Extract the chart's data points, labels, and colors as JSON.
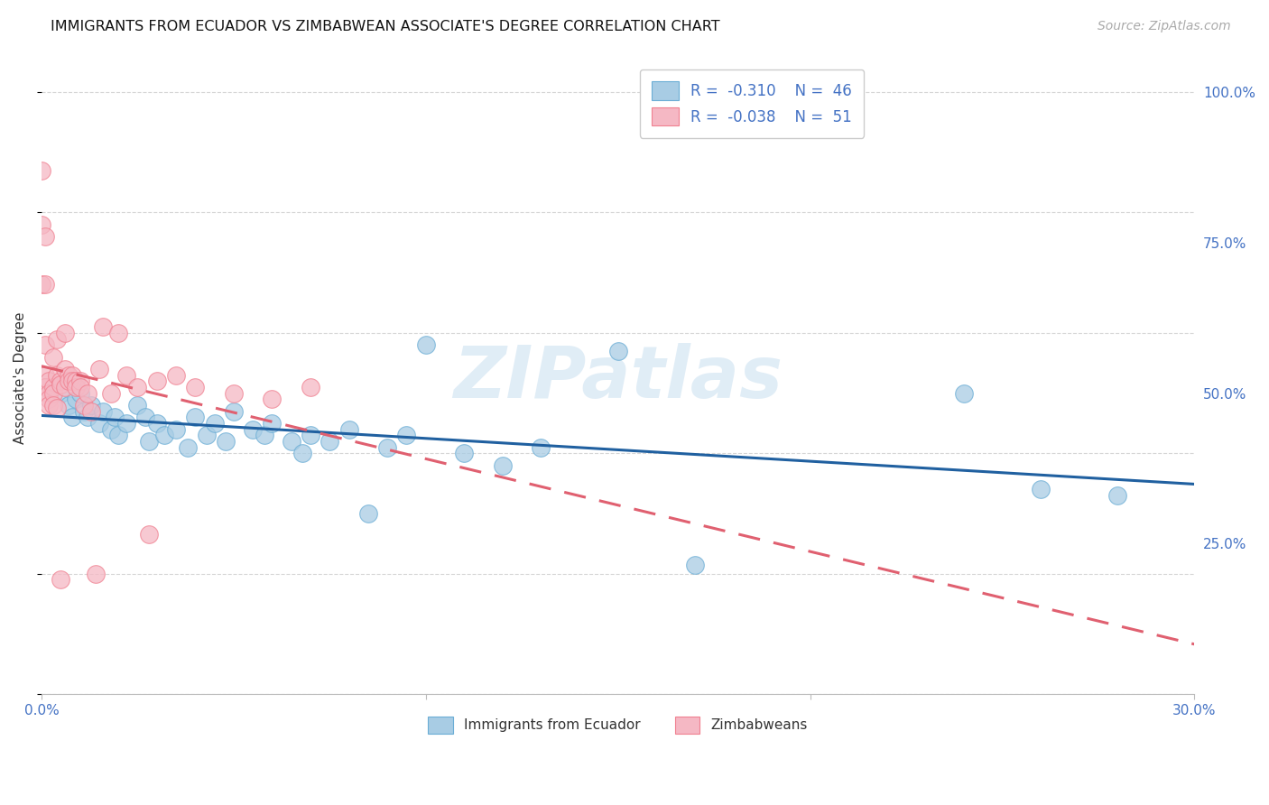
{
  "title": "IMMIGRANTS FROM ECUADOR VS ZIMBABWEAN ASSOCIATE'S DEGREE CORRELATION CHART",
  "source": "Source: ZipAtlas.com",
  "ylabel": "Associate's Degree",
  "legend_label1": "Immigrants from Ecuador",
  "legend_label2": "Zimbabweans",
  "R1": "-0.310",
  "N1": "46",
  "R2": "-0.038",
  "N2": "51",
  "color_blue_fill": "#a8cce4",
  "color_blue_edge": "#6aadd5",
  "color_pink_fill": "#f5b8c4",
  "color_pink_edge": "#f08090",
  "color_trendline_blue": "#2060a0",
  "color_trendline_pink": "#e06070",
  "color_axis_blue": "#4472c4",
  "color_grid": "#cccccc",
  "color_text_dark": "#333333",
  "color_source": "#aaaaaa",
  "color_watermark": "#c8dff0",
  "watermark": "ZIPatlas",
  "background_color": "#ffffff",
  "ecuador_x": [
    0.005,
    0.007,
    0.008,
    0.009,
    0.01,
    0.011,
    0.012,
    0.013,
    0.015,
    0.016,
    0.018,
    0.019,
    0.02,
    0.022,
    0.025,
    0.027,
    0.028,
    0.03,
    0.032,
    0.035,
    0.038,
    0.04,
    0.043,
    0.045,
    0.048,
    0.05,
    0.055,
    0.058,
    0.06,
    0.065,
    0.068,
    0.07,
    0.075,
    0.08,
    0.085,
    0.09,
    0.095,
    0.1,
    0.11,
    0.12,
    0.13,
    0.15,
    0.17,
    0.24,
    0.26,
    0.28
  ],
  "ecuador_y": [
    0.5,
    0.48,
    0.46,
    0.49,
    0.5,
    0.47,
    0.46,
    0.48,
    0.45,
    0.47,
    0.44,
    0.46,
    0.43,
    0.45,
    0.48,
    0.46,
    0.42,
    0.45,
    0.43,
    0.44,
    0.41,
    0.46,
    0.43,
    0.45,
    0.42,
    0.47,
    0.44,
    0.43,
    0.45,
    0.42,
    0.4,
    0.43,
    0.42,
    0.44,
    0.3,
    0.41,
    0.43,
    0.58,
    0.4,
    0.38,
    0.41,
    0.57,
    0.215,
    0.5,
    0.34,
    0.33
  ],
  "zimbabwe_x": [
    0.0,
    0.0,
    0.0,
    0.001,
    0.001,
    0.001,
    0.001,
    0.001,
    0.001,
    0.002,
    0.002,
    0.002,
    0.002,
    0.003,
    0.003,
    0.003,
    0.003,
    0.004,
    0.004,
    0.004,
    0.005,
    0.005,
    0.005,
    0.006,
    0.006,
    0.006,
    0.007,
    0.007,
    0.008,
    0.008,
    0.009,
    0.009,
    0.01,
    0.01,
    0.011,
    0.012,
    0.013,
    0.014,
    0.015,
    0.016,
    0.018,
    0.02,
    0.022,
    0.025,
    0.028,
    0.03,
    0.035,
    0.04,
    0.05,
    0.06,
    0.07
  ],
  "zimbabwe_y": [
    0.87,
    0.68,
    0.78,
    0.76,
    0.68,
    0.58,
    0.53,
    0.51,
    0.51,
    0.52,
    0.5,
    0.49,
    0.48,
    0.56,
    0.51,
    0.5,
    0.48,
    0.59,
    0.53,
    0.475,
    0.52,
    0.515,
    0.19,
    0.6,
    0.54,
    0.51,
    0.53,
    0.52,
    0.53,
    0.52,
    0.52,
    0.51,
    0.52,
    0.51,
    0.48,
    0.5,
    0.47,
    0.2,
    0.54,
    0.61,
    0.5,
    0.6,
    0.53,
    0.51,
    0.265,
    0.52,
    0.53,
    0.51,
    0.5,
    0.49,
    0.51
  ],
  "xlim": [
    0.0,
    0.3
  ],
  "ylim": [
    0.0,
    1.05
  ],
  "yticks": [
    0.25,
    0.5,
    0.75,
    1.0
  ],
  "ytick_labels": [
    "25.0%",
    "50.0%",
    "75.0%",
    "100.0%"
  ],
  "xticks": [
    0.0,
    0.1,
    0.2,
    0.3
  ],
  "xtick_labels_show": [
    "0.0%",
    "",
    "",
    "30.0%"
  ]
}
